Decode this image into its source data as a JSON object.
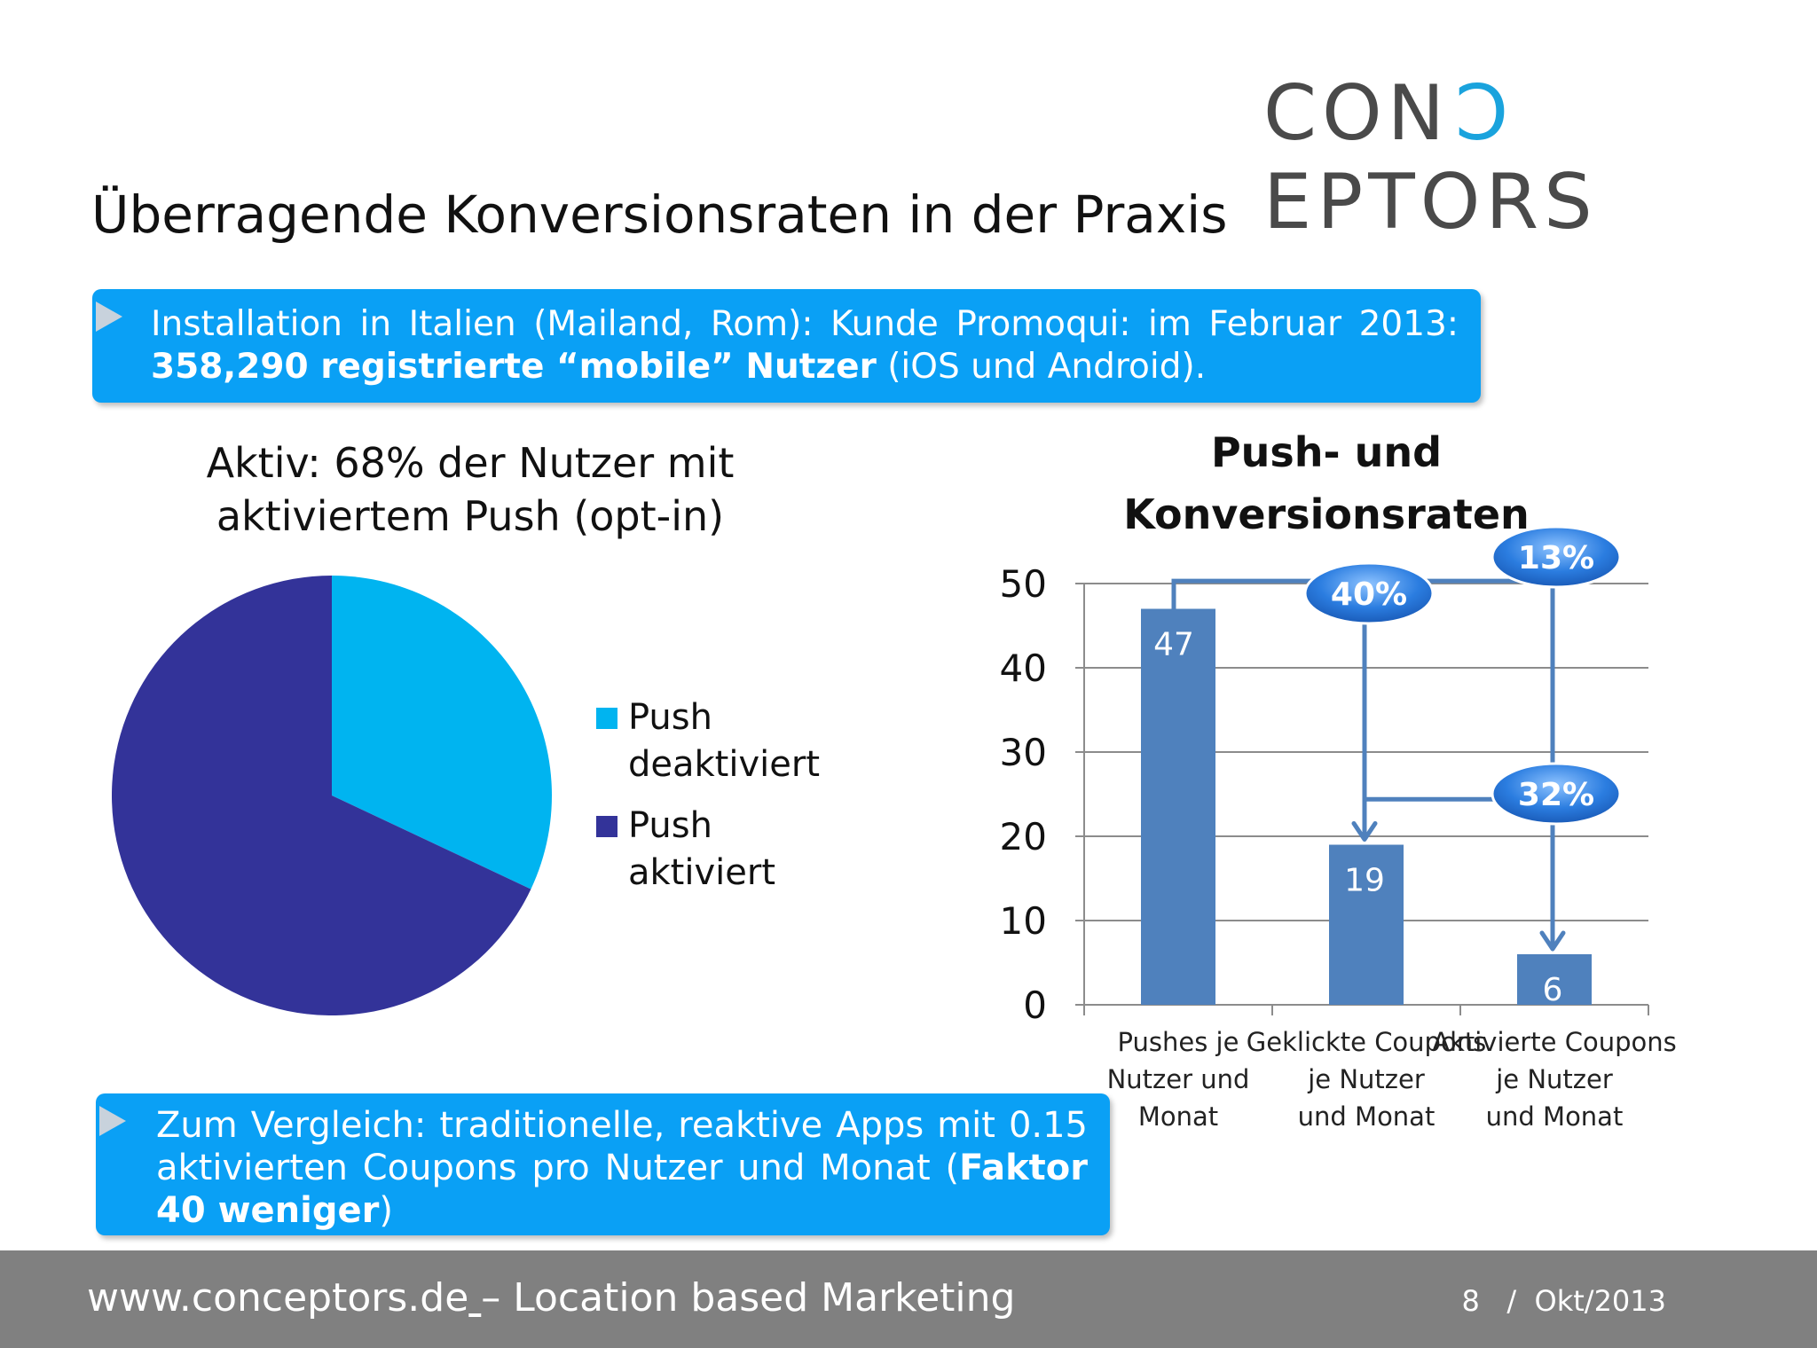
{
  "logo": {
    "part1": "CON",
    "part2": "C",
    "part3": "EPTORS"
  },
  "title": "Überragende Konversionsraten in der Praxis",
  "callout_top": {
    "text_a": "Installation in Italien (Mailand, Rom): Kunde Promoqui: im Februar 2013: ",
    "text_bold": "358,290 registrierte “mobile” Nutzer",
    "text_b": " (iOS und Android)."
  },
  "callout_bottom": {
    "text_a": "Zum Vergleich: traditionelle, reaktive Apps mit 0.15 aktivierten Coupons pro Nutzer und Monat (",
    "text_bold": "Faktor 40 weniger",
    "text_b": ")"
  },
  "footer": {
    "left_a": "www.conceptors.de",
    "left_b": " ",
    "left_c": "– Location based Marketing",
    "page": "8",
    "sep": "/",
    "date": "Okt/2013"
  },
  "chart_data": [
    {
      "type": "pie",
      "title": "Aktiv: 68% der Nutzer mit aktiviertem Push (opt-in)",
      "labels": [
        "Push deaktiviert",
        "Push aktiviert"
      ],
      "values": [
        32,
        68
      ],
      "colors": [
        "#00b4f0",
        "#333399"
      ],
      "legend_position": "right"
    },
    {
      "type": "bar",
      "title": "Push- und Konversionsraten",
      "categories": [
        "Pushes je Nutzer und Monat",
        "Geklickte Coupons je Nutzer und Monat",
        "Aktivierte Coupons je Nutzer und Monat"
      ],
      "values": [
        47,
        19,
        6
      ],
      "ylim": [
        0,
        50
      ],
      "yticks": [
        0,
        10,
        20,
        30,
        40,
        50
      ],
      "grid": true,
      "bar_color": "#4f81bd",
      "annotations": [
        "40%",
        "13%",
        "32%"
      ]
    }
  ]
}
